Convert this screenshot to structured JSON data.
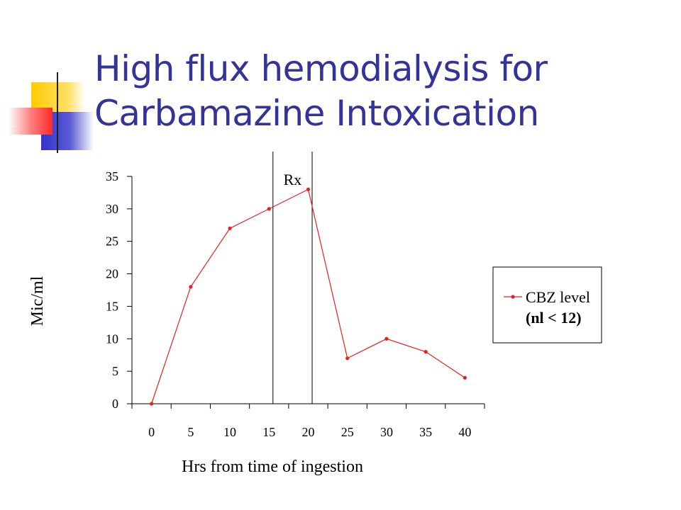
{
  "slide": {
    "title_line1": "High flux hemodialysis for",
    "title_line2": "Carbamazine Intoxication"
  },
  "chart_data": {
    "type": "line",
    "title": "",
    "xlabel": "Hrs from time of ingestion",
    "ylabel": "Mic/ml",
    "x_ticks": [
      0,
      5,
      10,
      15,
      20,
      25,
      30,
      35,
      40
    ],
    "y_ticks": [
      0,
      5,
      10,
      15,
      20,
      25,
      30,
      35
    ],
    "xlim": [
      -2.5,
      42.5
    ],
    "ylim": [
      0,
      35
    ],
    "grid": false,
    "legend_position": "right",
    "series": [
      {
        "name": "CBZ level",
        "name_line2": "(nl < 12)",
        "color": "#e8201f",
        "x": [
          0,
          5,
          10,
          15,
          20,
          25,
          30,
          35,
          40
        ],
        "y": [
          0,
          18,
          27,
          30,
          33,
          7,
          10,
          8,
          4
        ]
      }
    ],
    "annotations": [
      {
        "label": "Rx",
        "vlines_x": [
          15.5,
          20.5
        ]
      }
    ]
  },
  "colors": {
    "title": "#333399",
    "series": "#e8201f",
    "deco_yellow": "#ffcc00",
    "deco_blue": "#3333cc",
    "deco_red": "#ff3333"
  }
}
